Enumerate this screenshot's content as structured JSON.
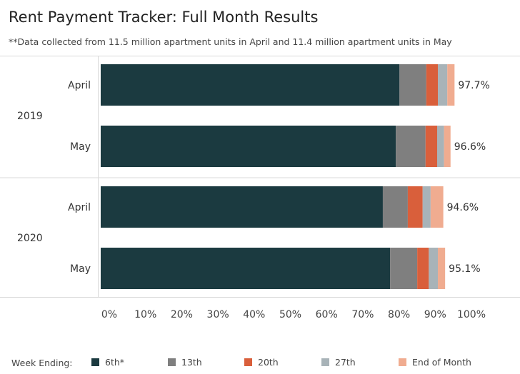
{
  "title": "Rent Payment Tracker: Full Month Results",
  "subtitle": "**Data collected from 11.5 million apartment units in April and 11.4 million apartment units in May",
  "legend": {
    "label": "Week Ending:",
    "items": [
      {
        "name": "6th*",
        "color": "#1b3a40"
      },
      {
        "name": "13th",
        "color": "#7f7f7f"
      },
      {
        "name": "20th",
        "color": "#d95f3b"
      },
      {
        "name": "27th",
        "color": "#a8b3b8"
      },
      {
        "name": "End of Month",
        "color": "#f0ac90"
      }
    ]
  },
  "chart_data": {
    "type": "bar",
    "orientation": "horizontal",
    "stacked": true,
    "groups": [
      "2019",
      "2020"
    ],
    "categories": [
      "April",
      "May",
      "April",
      "May"
    ],
    "category_group": [
      "2019",
      "2019",
      "2020",
      "2020"
    ],
    "series": [
      {
        "name": "6th*",
        "values": [
          82.5,
          81.5,
          77.9,
          79.9
        ]
      },
      {
        "name": "13th",
        "values": [
          7.4,
          8.2,
          6.9,
          7.5
        ]
      },
      {
        "name": "20th",
        "values": [
          3.2,
          3.2,
          4.1,
          3.2
        ]
      },
      {
        "name": "27th",
        "values": [
          2.6,
          1.9,
          2.2,
          2.5
        ]
      },
      {
        "name": "End of Month",
        "values": [
          2.0,
          1.8,
          3.5,
          2.0
        ]
      }
    ],
    "totals": [
      "97.7%",
      "96.6%",
      "94.6%",
      "95.1%"
    ],
    "x_ticks": [
      "0%",
      "10%",
      "20%",
      "30%",
      "40%",
      "50%",
      "60%",
      "70%",
      "80%",
      "90%",
      "100%"
    ],
    "xlim": [
      0,
      100
    ],
    "grid": false,
    "legend_position": "bottom"
  }
}
